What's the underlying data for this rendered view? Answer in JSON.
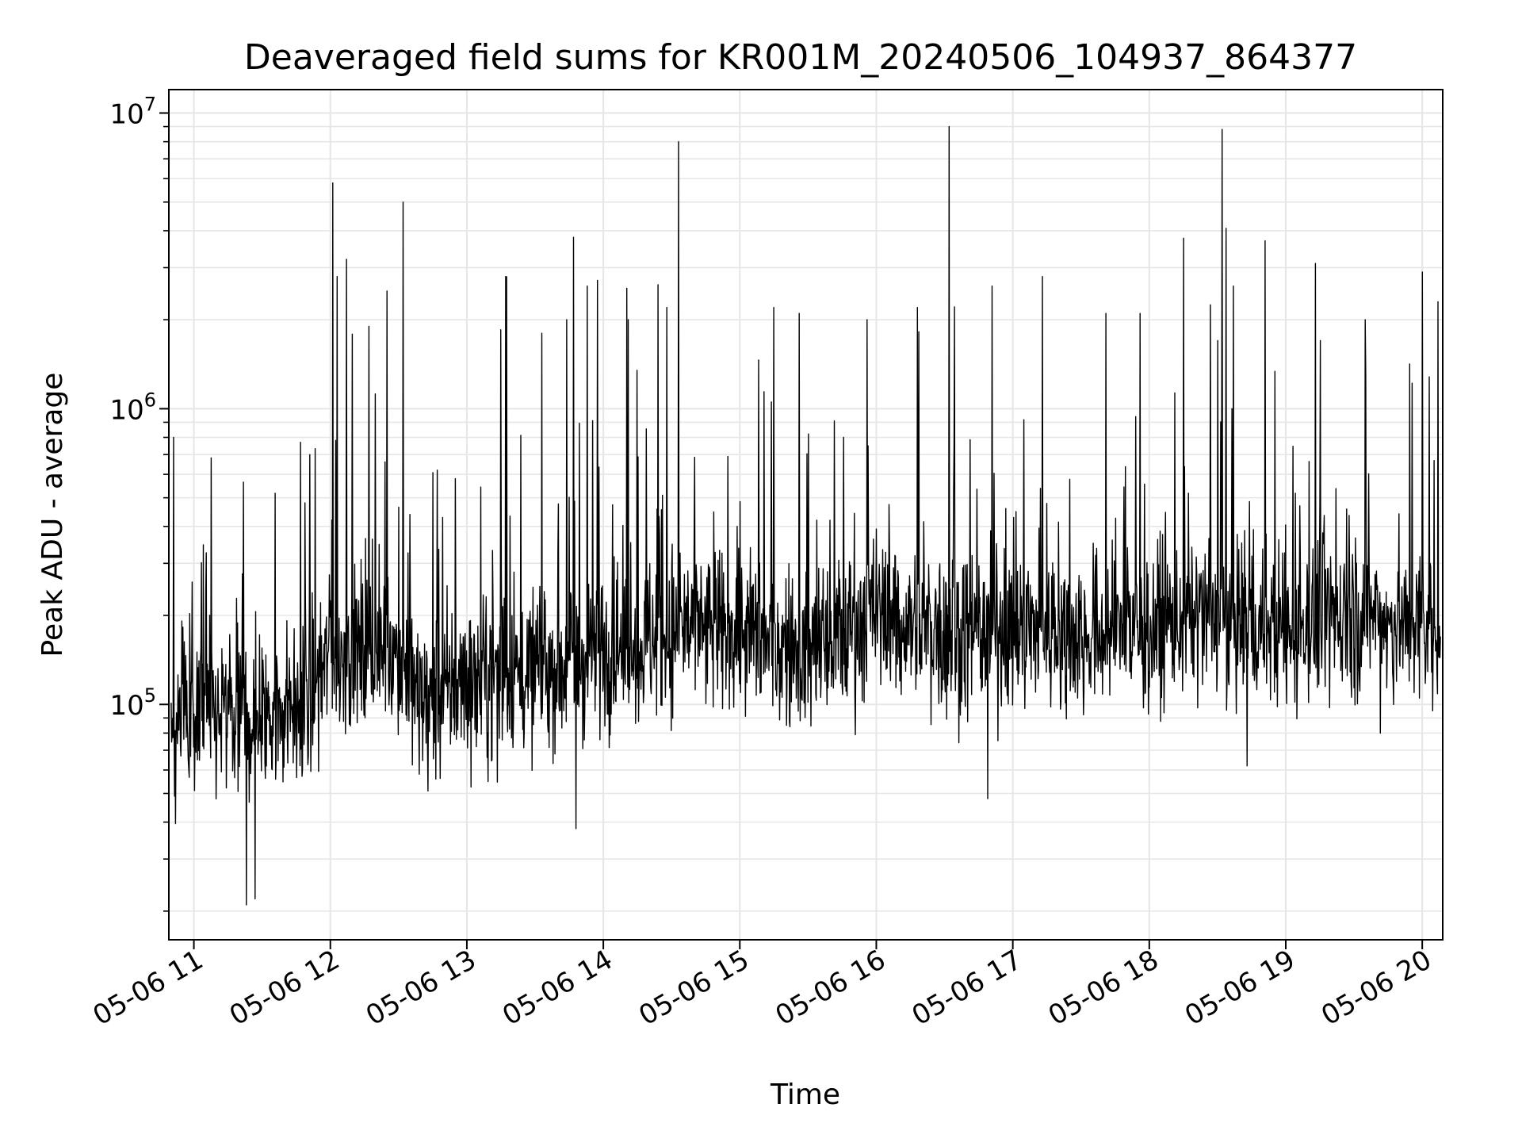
{
  "chart_data": {
    "type": "line",
    "title": "Deaveraged field sums for KR001M_20240506_104937_864377",
    "xlabel": "Time",
    "ylabel": "Peak ADU - average",
    "yscale": "log",
    "grid": true,
    "line_color": "#000000",
    "grid_color": "#e6e6e6",
    "xlim": [
      "2024-05-06 10:49",
      "2024-05-06 20:09"
    ],
    "ylim": [
      16000,
      12000000
    ],
    "x_ticks": [
      {
        "t": "2024-05-06 11:00",
        "label": "05-06 11"
      },
      {
        "t": "2024-05-06 12:00",
        "label": "05-06 12"
      },
      {
        "t": "2024-05-06 13:00",
        "label": "05-06 13"
      },
      {
        "t": "2024-05-06 14:00",
        "label": "05-06 14"
      },
      {
        "t": "2024-05-06 15:00",
        "label": "05-06 15"
      },
      {
        "t": "2024-05-06 16:00",
        "label": "05-06 16"
      },
      {
        "t": "2024-05-06 17:00",
        "label": "05-06 17"
      },
      {
        "t": "2024-05-06 18:00",
        "label": "05-06 18"
      },
      {
        "t": "2024-05-06 19:00",
        "label": "05-06 19"
      },
      {
        "t": "2024-05-06 20:00",
        "label": "05-06 20"
      }
    ],
    "y_ticks": [
      {
        "value": 100000,
        "base": "10",
        "exp": "5"
      },
      {
        "value": 1000000,
        "base": "10",
        "exp": "6"
      },
      {
        "value": 10000000,
        "base": "10",
        "exp": "7"
      }
    ],
    "series": [
      {
        "baseline": [
          [
            "2024-05-06 10:50",
            95000
          ],
          [
            "2024-05-06 11:20",
            90000
          ],
          [
            "2024-05-06 11:50",
            100000
          ],
          [
            "2024-05-06 12:00",
            150000
          ],
          [
            "2024-05-06 12:30",
            150000
          ],
          [
            "2024-05-06 12:40",
            100000
          ],
          [
            "2024-05-06 13:00",
            120000
          ],
          [
            "2024-05-06 13:30",
            130000
          ],
          [
            "2024-05-06 14:00",
            150000
          ],
          [
            "2024-05-06 14:30",
            180000
          ],
          [
            "2024-05-06 15:00",
            170000
          ],
          [
            "2024-05-06 15:30",
            150000
          ],
          [
            "2024-05-06 16:00",
            200000
          ],
          [
            "2024-05-06 16:30",
            170000
          ],
          [
            "2024-05-06 17:00",
            180000
          ],
          [
            "2024-05-06 17:30",
            170000
          ],
          [
            "2024-05-06 18:00",
            180000
          ],
          [
            "2024-05-06 18:30",
            200000
          ],
          [
            "2024-05-06 19:00",
            180000
          ],
          [
            "2024-05-06 19:30",
            200000
          ],
          [
            "2024-05-06 20:00",
            180000
          ]
        ],
        "spikes": [
          [
            "2024-05-06 10:51",
            800000
          ],
          [
            "2024-05-06 11:47",
            770000
          ],
          [
            "2024-05-06 12:01",
            5800000
          ],
          [
            "2024-05-06 12:03",
            2800000
          ],
          [
            "2024-05-06 12:07",
            3200000
          ],
          [
            "2024-05-06 12:17",
            1900000
          ],
          [
            "2024-05-06 12:25",
            2500000
          ],
          [
            "2024-05-06 12:32",
            5000000
          ],
          [
            "2024-05-06 12:47",
            620000
          ],
          [
            "2024-05-06 12:55",
            580000
          ],
          [
            "2024-05-06 13:15",
            1850000
          ],
          [
            "2024-05-06 13:17",
            2800000
          ],
          [
            "2024-05-06 13:33",
            1800000
          ],
          [
            "2024-05-06 13:44",
            2000000
          ],
          [
            "2024-05-06 13:47",
            3800000
          ],
          [
            "2024-05-06 13:53",
            2600000
          ],
          [
            "2024-05-06 14:11",
            2000000
          ],
          [
            "2024-05-06 14:28",
            2200000
          ],
          [
            "2024-05-06 14:33",
            8000000
          ],
          [
            "2024-05-06 15:15",
            2200000
          ],
          [
            "2024-05-06 15:26",
            2100000
          ],
          [
            "2024-05-06 15:56",
            2000000
          ],
          [
            "2024-05-06 16:18",
            2200000
          ],
          [
            "2024-05-06 16:32",
            9000000
          ],
          [
            "2024-05-06 16:51",
            2600000
          ],
          [
            "2024-05-06 17:13",
            2800000
          ],
          [
            "2024-05-06 17:41",
            2100000
          ],
          [
            "2024-05-06 17:56",
            2100000
          ],
          [
            "2024-05-06 18:30",
            1700000
          ],
          [
            "2024-05-06 18:32",
            8800000
          ],
          [
            "2024-05-06 18:37",
            2600000
          ],
          [
            "2024-05-06 19:13",
            3100000
          ],
          [
            "2024-05-06 19:35",
            2000000
          ],
          [
            "2024-05-06 20:00",
            2900000
          ],
          [
            "2024-05-06 20:07",
            2300000
          ]
        ],
        "dips": [
          [
            "2024-05-06 11:23",
            21000
          ],
          [
            "2024-05-06 11:27",
            22000
          ],
          [
            "2024-05-06 13:48",
            38000
          ],
          [
            "2024-05-06 16:49",
            48000
          ],
          [
            "2024-05-06 18:43",
            62000
          ]
        ]
      }
    ]
  }
}
